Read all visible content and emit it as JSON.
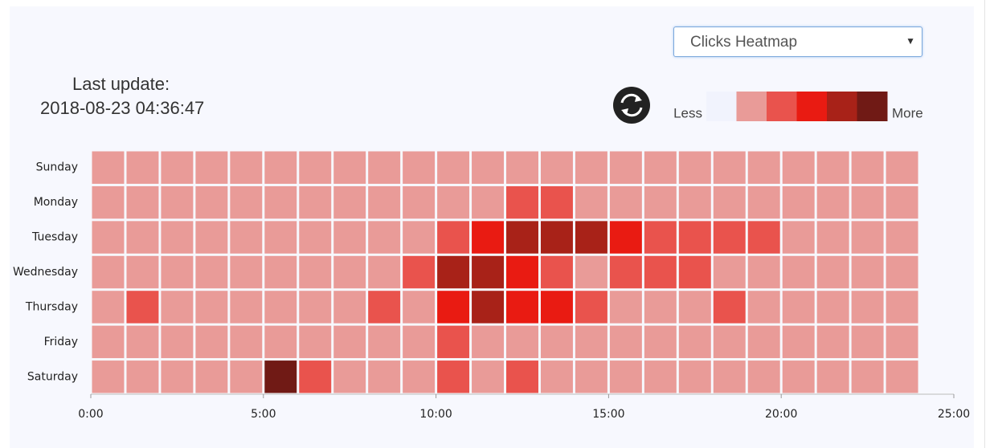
{
  "controls": {
    "select": "Clicks Heatmap",
    "last_update_label": "Last update:",
    "last_update": "2018-08-23 04:36:47"
  },
  "chart_data": {
    "type": "heatmap",
    "categories": [
      "Sunday",
      "Monday",
      "Tuesday",
      "Wednesday",
      "Thursday",
      "Friday",
      "Saturday"
    ],
    "x": [
      0,
      1,
      2,
      3,
      4,
      5,
      6,
      7,
      8,
      9,
      10,
      11,
      12,
      13,
      14,
      15,
      16,
      17,
      18,
      19,
      20,
      21,
      22,
      23
    ],
    "values": [
      [
        1,
        1,
        1,
        1,
        1,
        1,
        1,
        1,
        1,
        1,
        1,
        1,
        1,
        1,
        1,
        1,
        1,
        1,
        1,
        1,
        1,
        1,
        1,
        1
      ],
      [
        1,
        1,
        1,
        1,
        1,
        1,
        1,
        1,
        1,
        1,
        1,
        1,
        2,
        2,
        1,
        1,
        1,
        1,
        1,
        1,
        1,
        1,
        1,
        1
      ],
      [
        1,
        1,
        1,
        1,
        1,
        1,
        1,
        1,
        1,
        1,
        2,
        3,
        4,
        4,
        4,
        3,
        2,
        2,
        2,
        2,
        1,
        1,
        1,
        1
      ],
      [
        1,
        1,
        1,
        1,
        1,
        1,
        1,
        1,
        1,
        2,
        4,
        4,
        3,
        2,
        1,
        2,
        2,
        2,
        1,
        1,
        1,
        1,
        1,
        1
      ],
      [
        1,
        2,
        1,
        1,
        1,
        1,
        1,
        1,
        2,
        1,
        3,
        4,
        3,
        3,
        2,
        1,
        1,
        1,
        2,
        1,
        1,
        1,
        1,
        1
      ],
      [
        1,
        1,
        1,
        1,
        1,
        1,
        1,
        1,
        1,
        1,
        2,
        1,
        1,
        1,
        1,
        1,
        1,
        1,
        1,
        1,
        1,
        1,
        1,
        1
      ],
      [
        1,
        1,
        1,
        1,
        1,
        5,
        2,
        1,
        1,
        1,
        2,
        1,
        2,
        1,
        1,
        1,
        1,
        1,
        1,
        1,
        1,
        1,
        1,
        1
      ]
    ],
    "colors": [
      "#f1f3fd",
      "#e99b98",
      "#e9534d",
      "#e91b12",
      "#a82218",
      "#701a15"
    ],
    "legend_low": "Less",
    "legend_high": "More",
    "xlim": [
      0,
      25
    ],
    "xticks": [
      {
        "value": 0,
        "label": "0:00"
      },
      {
        "value": 5,
        "label": "5:00"
      },
      {
        "value": 10,
        "label": "10:00"
      },
      {
        "value": 15,
        "label": "15:00"
      },
      {
        "value": 20,
        "label": "20:00"
      },
      {
        "value": 25,
        "label": "25:00"
      }
    ]
  }
}
